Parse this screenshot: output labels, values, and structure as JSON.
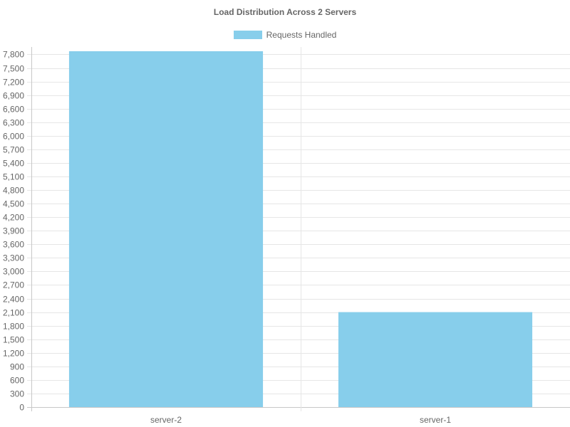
{
  "chart_data": {
    "type": "bar",
    "title": "Load Distribution Across 2 Servers",
    "categories": [
      "server-2",
      "server-1"
    ],
    "series": [
      {
        "name": "Requests Handled",
        "values": [
          7870,
          2100
        ],
        "color": "#87ceeb"
      }
    ],
    "xlabel": "",
    "ylabel": "",
    "ylim": [
      0,
      7870
    ],
    "yticks": [
      0,
      300,
      600,
      900,
      1200,
      1500,
      1800,
      2100,
      2400,
      2700,
      3000,
      3300,
      3600,
      3900,
      4200,
      4500,
      4800,
      5100,
      5400,
      5700,
      6000,
      6300,
      6600,
      6900,
      7200,
      7500,
      7800
    ],
    "grid": true,
    "legend_position": "top-center"
  }
}
